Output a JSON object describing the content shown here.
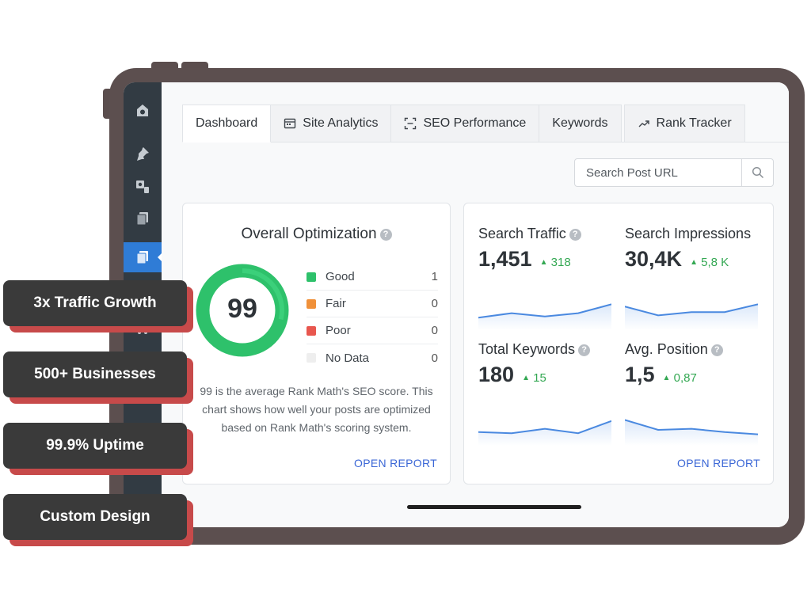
{
  "tabs": [
    {
      "label": "Dashboard",
      "icon": "",
      "active": true
    },
    {
      "label": "Site Analytics",
      "icon": "calendar-icon",
      "active": false
    },
    {
      "label": "SEO Performance",
      "icon": "scan-icon",
      "active": false
    },
    {
      "label": "Keywords",
      "icon": "",
      "active": false
    },
    {
      "label": "Rank Tracker",
      "icon": "trend-icon",
      "active": false
    }
  ],
  "search": {
    "placeholder": "Search Post URL"
  },
  "optimization": {
    "title": "Overall Optimization",
    "score": "99",
    "legend": [
      {
        "label": "Good",
        "count": "1",
        "color": "#2ec16b"
      },
      {
        "label": "Fair",
        "count": "0",
        "color": "#f0913a"
      },
      {
        "label": "Poor",
        "count": "0",
        "color": "#e8574e"
      },
      {
        "label": "No Data",
        "count": "0",
        "color": "#eeeeee"
      }
    ],
    "description": "99 is the average Rank Math's SEO score. This chart shows how well your posts are optimized based on Rank Math's scoring system.",
    "open_report": "OPEN REPORT"
  },
  "metrics": [
    {
      "label": "Search Traffic",
      "help": true,
      "value": "1,451",
      "delta": "318",
      "spark": [
        0.35,
        0.55,
        0.4,
        0.55,
        0.95
      ]
    },
    {
      "label": "Search Impressions",
      "help": false,
      "value": "30,4K",
      "delta": "5,8 K",
      "spark": [
        0.85,
        0.45,
        0.6,
        0.6,
        0.95
      ]
    },
    {
      "label": "Total Keywords",
      "help": true,
      "value": "180",
      "delta": "15",
      "spark": [
        0.4,
        0.35,
        0.55,
        0.35,
        0.9
      ]
    },
    {
      "label": "Avg. Position",
      "help": true,
      "value": "1,5",
      "delta": "0,87",
      "spark": [
        0.95,
        0.5,
        0.55,
        0.4,
        0.3
      ]
    }
  ],
  "metrics_open_report": "OPEN REPORT",
  "badges": [
    "3x Traffic Growth",
    "500+ Businesses",
    "99.9% Uptime",
    "Custom Design"
  ],
  "colors": {
    "accent": "#2f7cd6",
    "link": "#3b67d6",
    "positive": "#34a853",
    "badge_shadow": "#c74a4a",
    "spark_line": "#4a89e0"
  }
}
